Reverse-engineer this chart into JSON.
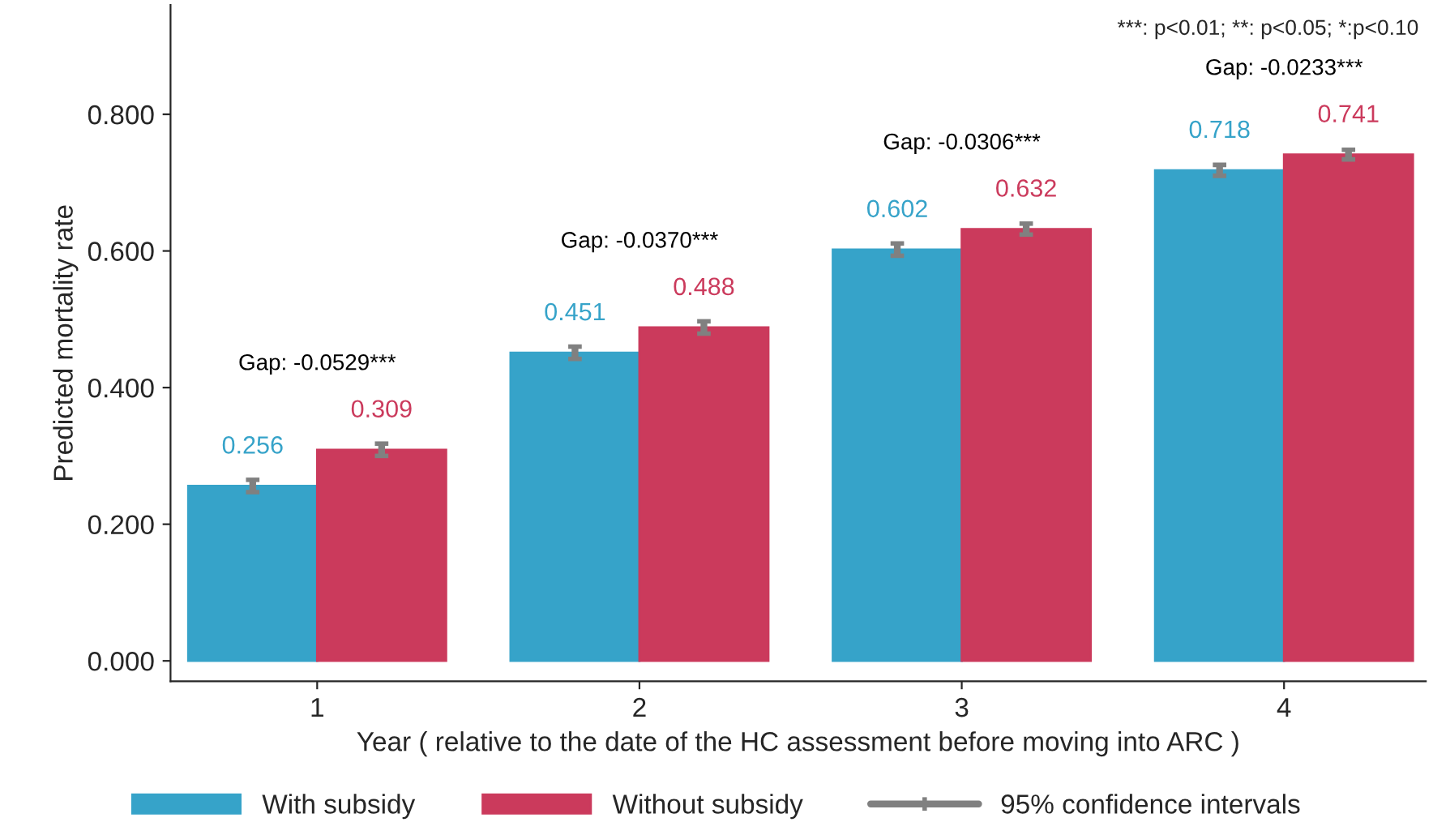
{
  "chart_data": {
    "type": "bar",
    "xlabel": "Year ( relative to the date of the HC assessment before moving into ARC )",
    "ylabel": "Predicted mortality rate",
    "categories": [
      "1",
      "2",
      "3",
      "4"
    ],
    "series": [
      {
        "name": "With subsidy",
        "color": "#36a3c9",
        "values": [
          0.256,
          0.451,
          0.602,
          0.718
        ],
        "errors": [
          0.009,
          0.009,
          0.009,
          0.008
        ]
      },
      {
        "name": "Without subsidy",
        "color": "#cb3a5c",
        "values": [
          0.309,
          0.488,
          0.632,
          0.741
        ],
        "errors": [
          0.009,
          0.009,
          0.008,
          0.007
        ]
      }
    ],
    "ylim": [
      -0.03,
      0.96
    ],
    "yticks": [
      {
        "value": 0,
        "label": "0.000"
      },
      {
        "value": 0.2,
        "label": "0.200"
      },
      {
        "value": 0.4,
        "label": "0.400"
      },
      {
        "value": 0.6,
        "label": "0.600"
      },
      {
        "value": 0.8,
        "label": "0.800"
      }
    ],
    "data_labels": true,
    "grid": false,
    "legend": "bottom",
    "annotations": [
      "***: p<0.01; **: p<0.05; *:p<0.10",
      "95% confidence intervals",
      "Gap: -0.0529***",
      "Gap: -0.0370***",
      "Gap: -0.0306***",
      "Gap: -0.0233***"
    ]
  }
}
